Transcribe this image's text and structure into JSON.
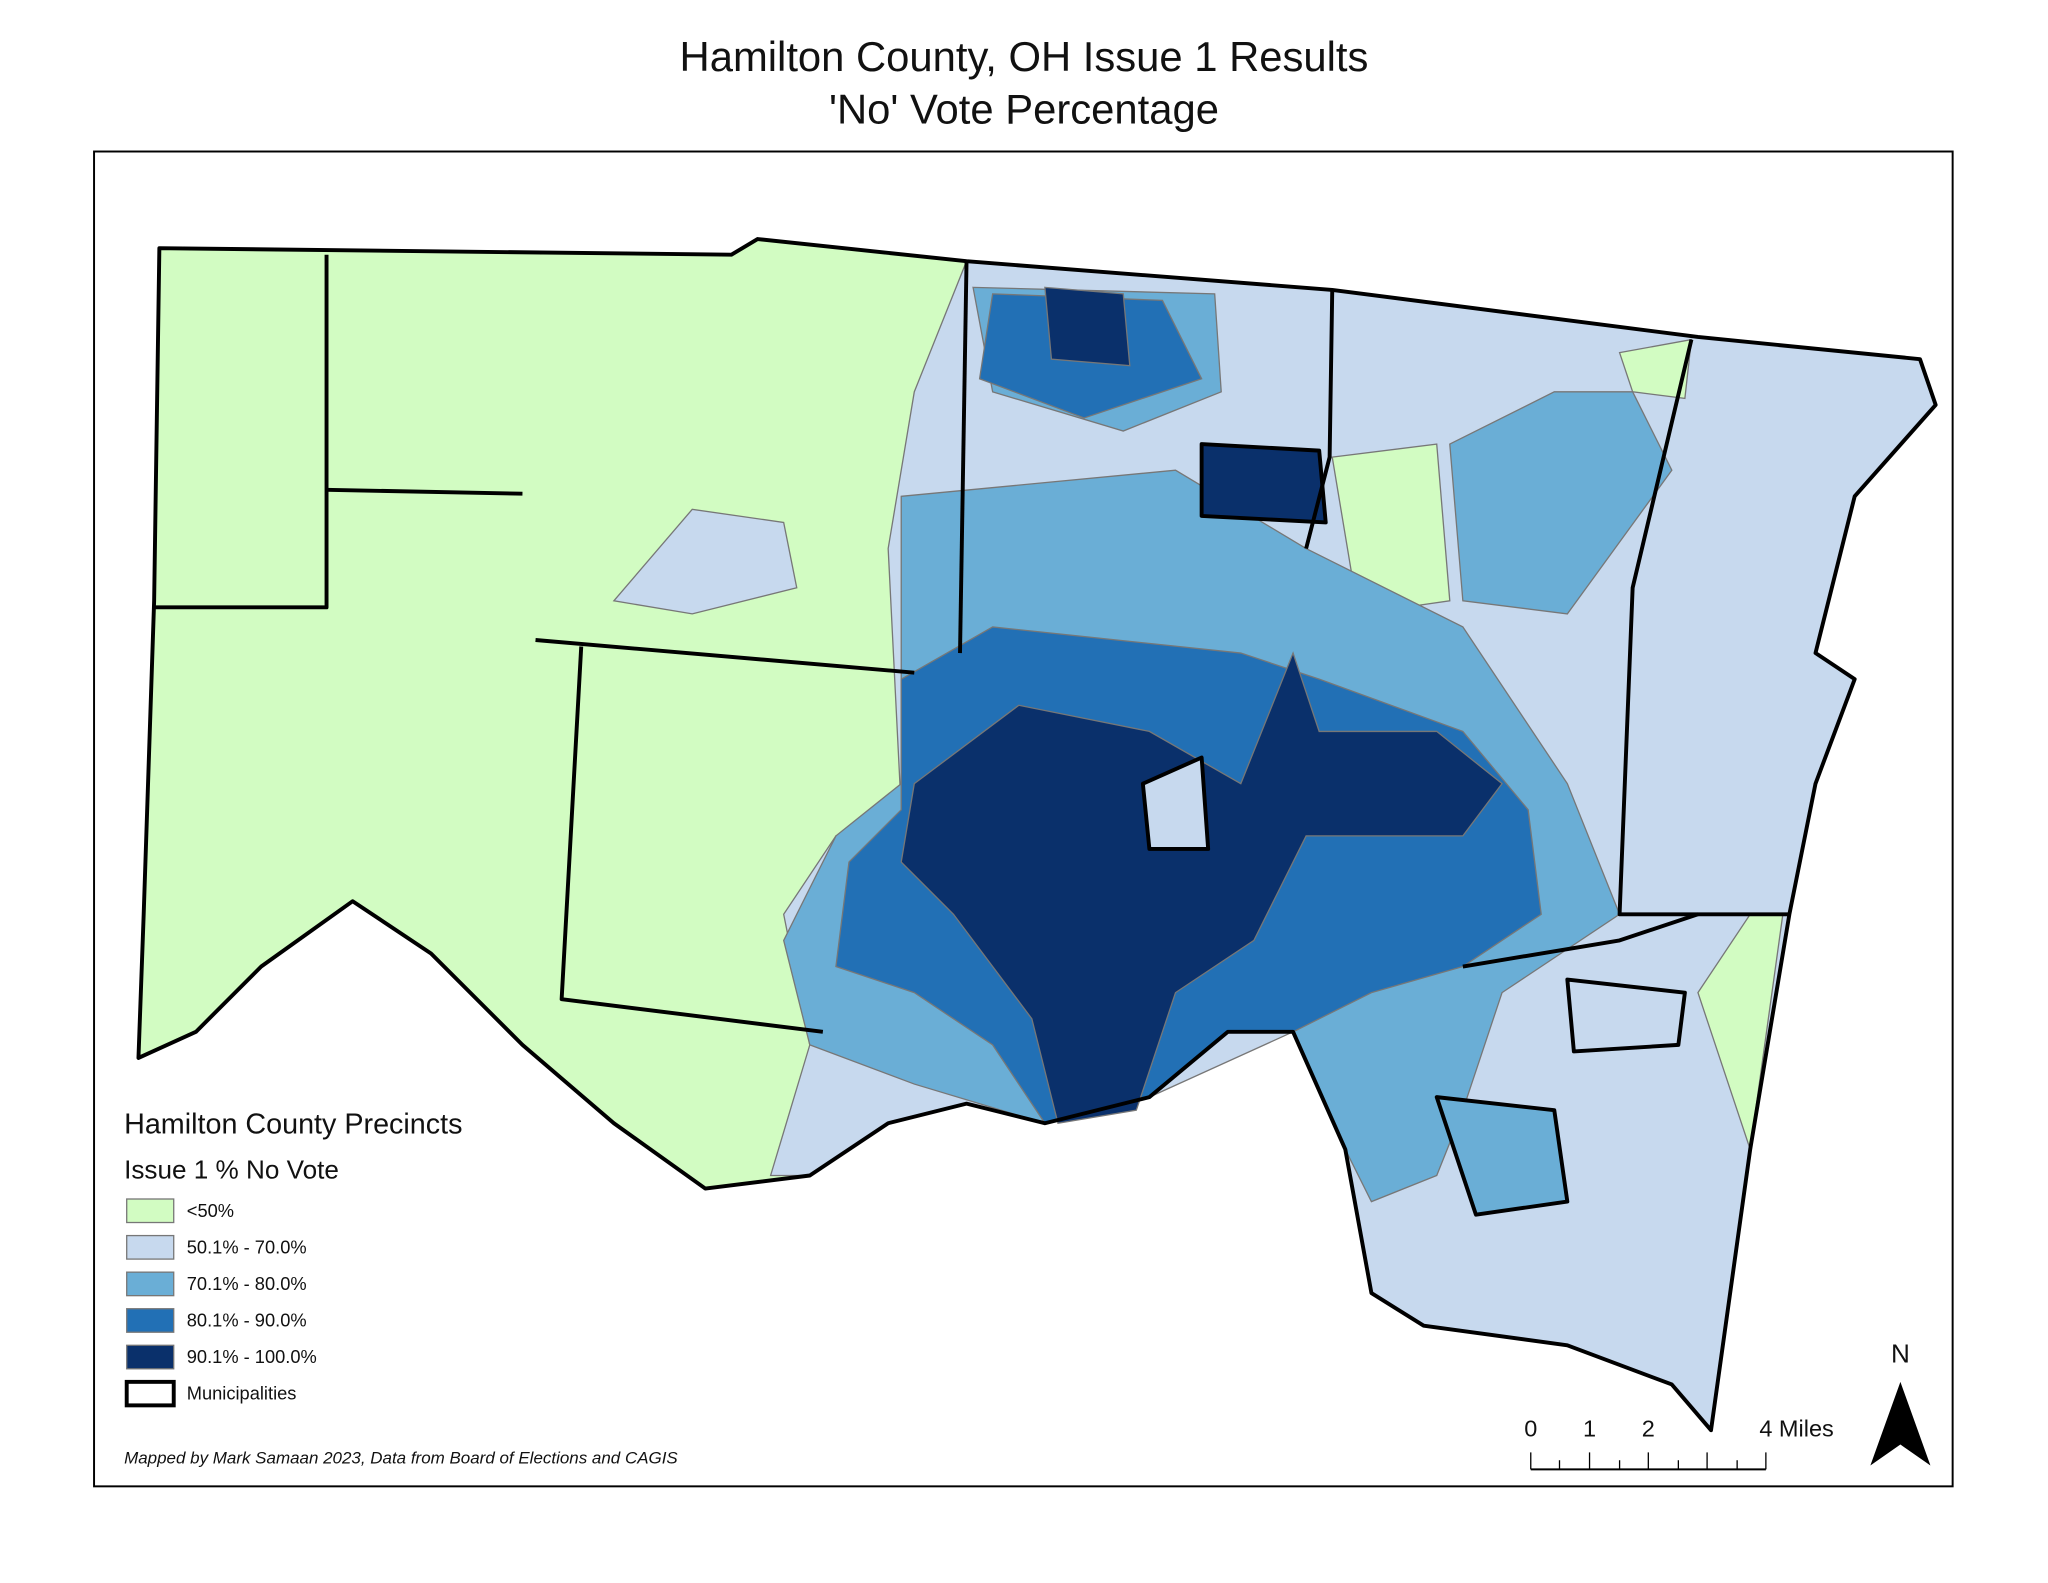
{
  "header": {
    "title": [
      "Hamilton County, OH Issue 1 Results",
      "'No' Vote Percentage"
    ]
  },
  "legend": {
    "title": "Hamilton County Precincts",
    "subtitle": "Issue 1 % No Vote",
    "items": [
      {
        "label": "<50%",
        "color": "#d2fcc2"
      },
      {
        "label": "50.1% - 70.0%",
        "color": "#c7d9ee"
      },
      {
        "label": "70.1% - 80.0%",
        "color": "#6aaed6"
      },
      {
        "label": "80.1% - 90.0%",
        "color": "#2270b5"
      },
      {
        "label": "90.1% - 100.0%",
        "color": "#0a306b"
      },
      {
        "label": "Municipalities"
      }
    ]
  },
  "scale_bar": {
    "labels": [
      "0",
      "1",
      "2",
      "4 Miles"
    ]
  },
  "north_arrow": "N",
  "credit": "Mapped by Mark Samaan 2023, Data from Board of Elections and CAGIS"
}
